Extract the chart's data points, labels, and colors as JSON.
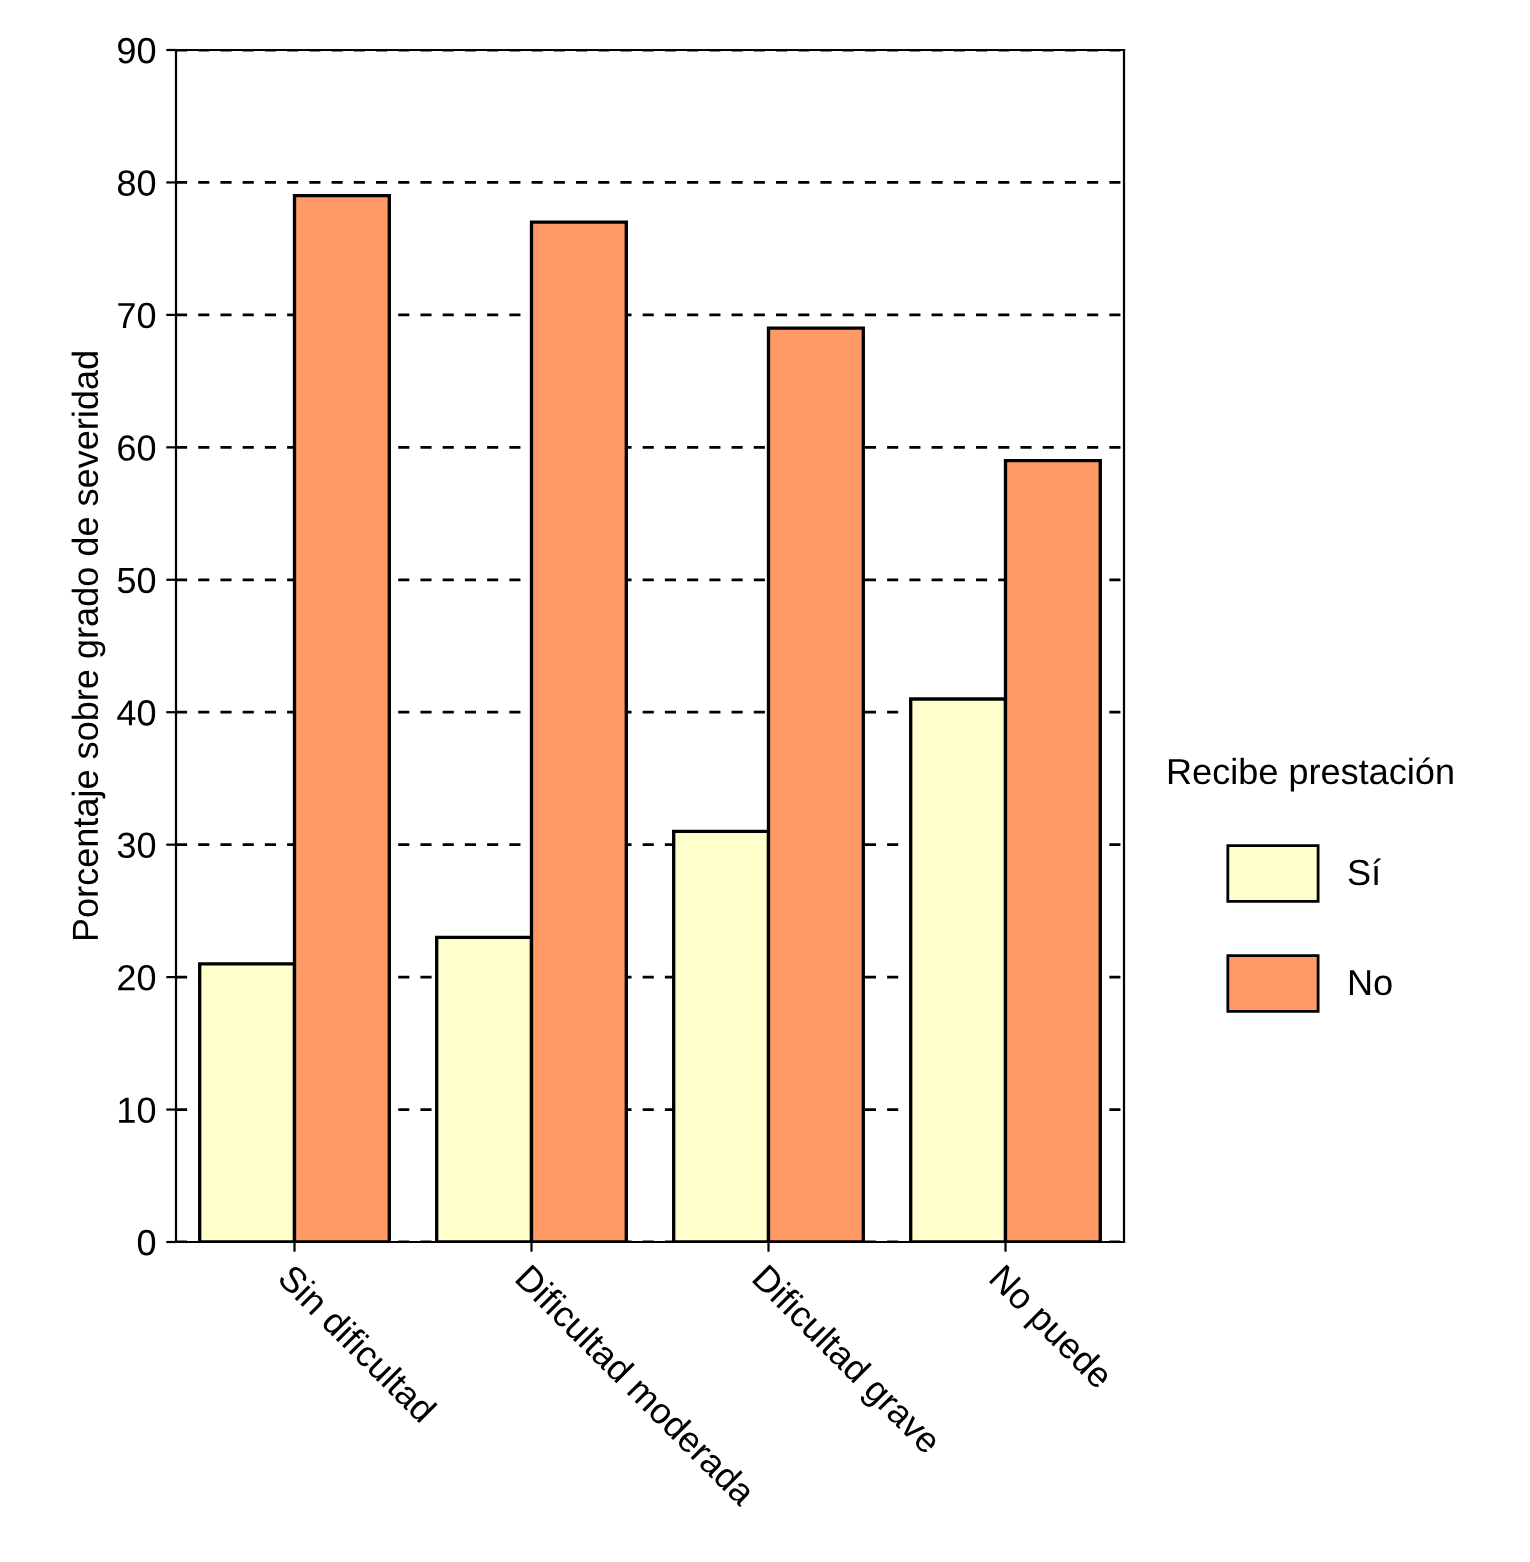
{
  "chart_data": {
    "type": "bar",
    "ylabel": "Porcentaje sobre grado de severidad",
    "legend_title": "Recibe prestación",
    "categories": [
      "Sin dificultad",
      "Dificultad moderada",
      "Dificultad grave",
      "No puede"
    ],
    "series": [
      {
        "name": "Sí",
        "color": "#ffffcc",
        "values": [
          21,
          23,
          31,
          41
        ]
      },
      {
        "name": "No",
        "color": "#ff9966",
        "values": [
          79,
          77,
          69,
          59
        ]
      }
    ],
    "ylim": [
      0,
      90
    ],
    "yticks": [
      0,
      10,
      20,
      30,
      40,
      50,
      60,
      70,
      80,
      90
    ],
    "grid": "y",
    "legend": "right"
  }
}
